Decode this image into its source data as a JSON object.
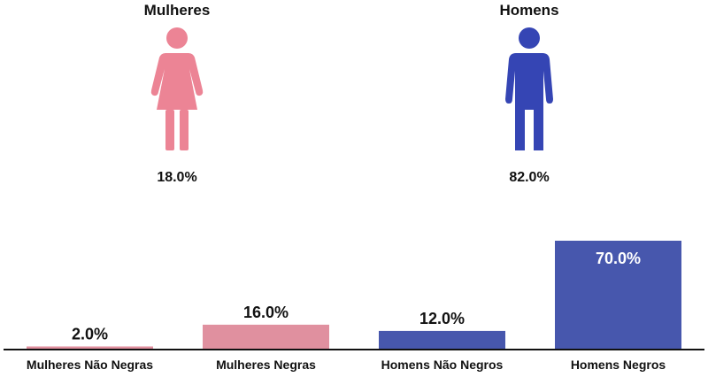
{
  "colors": {
    "women": "#e0909f",
    "women_icon": "#ec8495",
    "men": "#4757ad",
    "men_icon": "#3545b4",
    "axis": "#111111"
  },
  "genders": {
    "women": {
      "title": "Mulheres",
      "percent": "18.0%",
      "icon": "woman-icon"
    },
    "men": {
      "title": "Homens",
      "percent": "82.0%",
      "icon": "man-icon"
    }
  },
  "chart_data": {
    "type": "bar",
    "categories": [
      "Mulheres Não Negras",
      "Mulheres Negras",
      "Homens Não Negros",
      "Homens Negros"
    ],
    "values": [
      2.0,
      16.0,
      12.0,
      70.0
    ],
    "value_labels": [
      "2.0%",
      "16.0%",
      "12.0%",
      "70.0%"
    ],
    "bar_colors": [
      "#e0909f",
      "#e0909f",
      "#4757ad",
      "#4757ad"
    ],
    "ylim": [
      0,
      70
    ],
    "grid": false
  }
}
